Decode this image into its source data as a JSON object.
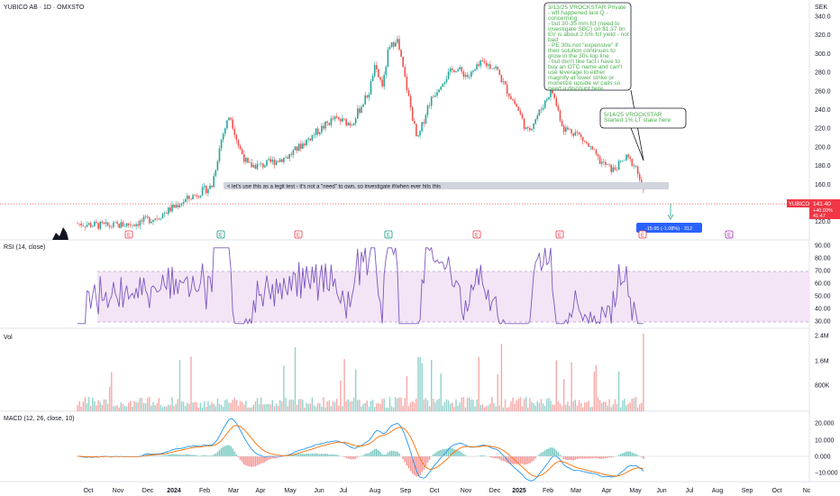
{
  "header": {
    "title": "YUBICO AB · 1D · OMXSTO",
    "currency": "SEK"
  },
  "price_pane": {
    "ticks": [
      "340.0",
      "320.0",
      "300.0",
      "280.0",
      "260.0",
      "240.0",
      "220.0",
      "200.0",
      "180.0",
      "160.0",
      "120.0"
    ],
    "tick_values": [
      340,
      320,
      300,
      280,
      260,
      240,
      220,
      200,
      180,
      160,
      120
    ],
    "badge": {
      "ticker": "YUBICO",
      "price": "141.40",
      "change": "+40.00%",
      "extra": "41:47"
    },
    "range_tag": "-15.65 (-1.08%) · 312",
    "annotation_top": [
      "3/13/25 VROCKSTAR Private",
      "- wtf happened last Q -",
      "concerning",
      "- but 30-35 mm fcf (need to",
      "investigate SBC) on $1.37 bn",
      "EV is about 2.5% fcf yield - not",
      "bad",
      "- PE 30s not \"expensive\" if",
      "their solution continues to",
      "grow in the 30s top line",
      "- but don't like fact i have to",
      "buy an OTC name and can't",
      "use leverage to either",
      "magnify at lower strike or",
      "monetize upside w/ calls so",
      "need a discount here"
    ],
    "annotation_mid": [
      "5/14/25 VROCKSTAR",
      "Started 1% LT stake here"
    ],
    "annotation_band": "< let's use this as a legit test - it's not a \"need\" to own, so investigate if/when ever hits this",
    "earnings_markers": [
      "E",
      "E",
      "E",
      "E",
      "E",
      "E",
      "E",
      "E",
      "E"
    ]
  },
  "rsi_pane": {
    "title": "RSI (14, close)",
    "ticks": [
      "90.00",
      "80.00",
      "70.00",
      "60.00",
      "50.00",
      "40.00",
      "30.00"
    ]
  },
  "vol_pane": {
    "title": "Vol",
    "ticks": [
      "2.4M",
      "1.6M",
      "800K"
    ]
  },
  "macd_pane": {
    "title": "MACD (12, 26, close, 10)",
    "ticks": [
      "20.000",
      "10.000",
      "0.000",
      "−10.000"
    ]
  },
  "time_axis": {
    "labels": [
      "Oct",
      "Nov",
      "Dec",
      "2024",
      "Feb",
      "Mar",
      "Apr",
      "May",
      "Jun",
      "Jul",
      "Aug",
      "Sep",
      "Oct",
      "Nov",
      "Dec",
      "2025",
      "Feb",
      "Mar",
      "Apr",
      "May",
      "Jun",
      "Jul",
      "Aug",
      "Sep",
      "Oct",
      "Nc"
    ],
    "bold": [
      "2024",
      "2025"
    ]
  },
  "colors": {
    "up": "#26a69a",
    "down": "#ef5350",
    "rsi": "#7e57c2",
    "rsi_band": "#f3e5f5",
    "macd": "#2196f3",
    "signal": "#ff6d00",
    "annotation": "#4caf50",
    "badge": "#f23645",
    "range": "#2962ff"
  }
}
